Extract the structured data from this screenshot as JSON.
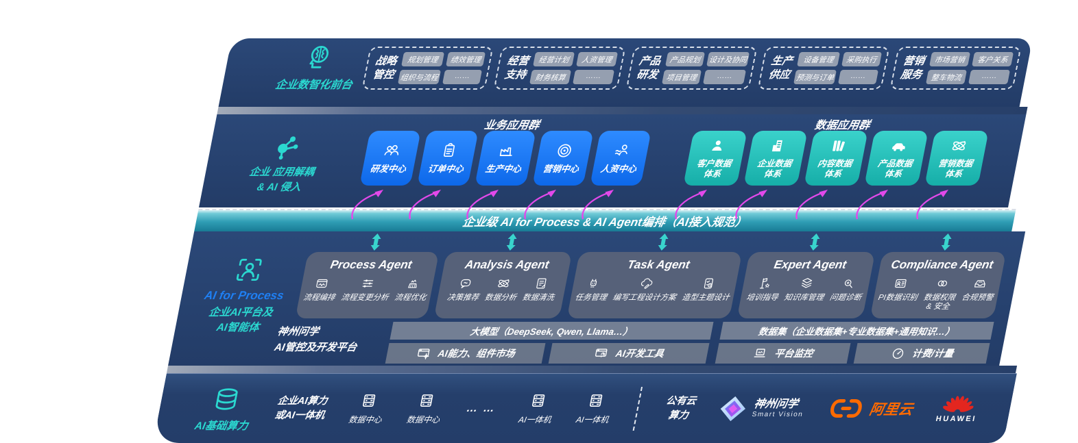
{
  "colors": {
    "teal_accent": "#2bd8d0",
    "blue_accent": "#1f7ff2",
    "magenta_arrow": "#e249ea",
    "navy_background": "#25406d",
    "blue_card": "#1678f2",
    "teal_card": "#22bdb6",
    "band_teal": "#2f9db4",
    "aliyun_orange": "#ff6a00",
    "huawei_red": "#e3261f"
  },
  "front_office": {
    "label": "企业数智化前台",
    "icon": "brain-head-icon",
    "groups": [
      {
        "title": [
          "战略",
          "管控"
        ],
        "items": [
          "规划管理",
          "绩效管理",
          "组织与流程",
          "……"
        ]
      },
      {
        "title": [
          "经营",
          "支持"
        ],
        "items": [
          "经营计划",
          "人资管理",
          "财务核算",
          "……"
        ]
      },
      {
        "title": [
          "产品",
          "研发"
        ],
        "items": [
          "产品规划",
          "设计及协同",
          "项目管理",
          "……"
        ]
      },
      {
        "title": [
          "生产",
          "供应"
        ],
        "items": [
          "设备管理",
          "采购执行",
          "预测与订单",
          "……"
        ]
      },
      {
        "title": [
          "营销",
          "服务"
        ],
        "items": [
          "市场营销",
          "客户关系",
          "整车物流",
          "……"
        ]
      }
    ]
  },
  "app_layer": {
    "label_lines": [
      "企业 应用解耦",
      "& AI 侵入"
    ],
    "icon": "molecule-icon",
    "business_group_title": "业务应用群",
    "data_group_title": "数据应用群",
    "business_apps": [
      {
        "label": "研发中心",
        "icon": "people-icon"
      },
      {
        "label": "订单中心",
        "icon": "clipboard-icon"
      },
      {
        "label": "生产中心",
        "icon": "factory-icon"
      },
      {
        "label": "营销中心",
        "icon": "target-icon"
      },
      {
        "label": "人资中心",
        "icon": "person-arrows-icon"
      }
    ],
    "data_apps": [
      {
        "label": [
          "客户数据",
          "体系"
        ],
        "icon": "person-icon"
      },
      {
        "label": [
          "企业数据",
          "体系"
        ],
        "icon": "building-icon"
      },
      {
        "label": [
          "内容数据",
          "体系"
        ],
        "icon": "books-icon"
      },
      {
        "label": [
          "产品数据",
          "体系"
        ],
        "icon": "car-icon"
      },
      {
        "label": [
          "营销数据",
          "体系"
        ],
        "icon": "atom-icon"
      }
    ]
  },
  "orchestration_band": {
    "label": "企业级 AI for Process & AI Agent编排（AI接入规范）"
  },
  "ai_platform": {
    "label_line1": "AI for Process",
    "label_line2": "企业AI平台及",
    "label_line3": "AI智能体",
    "icon": "scan-person-icon",
    "agents": [
      {
        "title": "Process Agent",
        "capabilities": [
          {
            "label": "流程编排",
            "icon": "flow-monitor-icon"
          },
          {
            "label": "流程变更分析",
            "icon": "sliders-icon"
          },
          {
            "label": "流程优化",
            "icon": "optimize-icon"
          }
        ]
      },
      {
        "title": "Analysis Agent",
        "capabilities": [
          {
            "label": "决策推荐",
            "icon": "chat-face-icon"
          },
          {
            "label": "数据分析",
            "icon": "atom-icon"
          },
          {
            "label": "数据清洗",
            "icon": "doc-clean-icon"
          }
        ]
      },
      {
        "title": "Task Agent",
        "capabilities": [
          {
            "label": "任务管理",
            "icon": "robot-icon"
          },
          {
            "label": "编写工程设计方案",
            "icon": "cloud-edit-icon"
          },
          {
            "label": "造型主题设计",
            "icon": "checklist-clock-icon"
          }
        ]
      },
      {
        "title": "Expert Agent",
        "capabilities": [
          {
            "label": "培训指导",
            "icon": "training-icon"
          },
          {
            "label": "知识库管理",
            "icon": "layers-icon"
          },
          {
            "label": "问题诊断",
            "icon": "diagnose-icon"
          }
        ]
      },
      {
        "title": "Compliance Agent",
        "capabilities": [
          {
            "label": "PI数据识别",
            "icon": "id-card-icon"
          },
          {
            "label": "数据权限 & 安全",
            "icon": "keys-icon",
            "two_line": true
          },
          {
            "label": "合规预警",
            "icon": "alert-mail-icon"
          }
        ]
      }
    ],
    "platform": {
      "label_line1": "神州问学",
      "label_line2": "AI管控及开发平台",
      "model_bar": "大模型（DeepSeek, Qwen, Llama…）",
      "capability_bar": "AI能力、组件市场",
      "capability_icon": "window-gear-icon",
      "devtools_bar": "AI开发工具",
      "devtools_icon": "window-tools-icon",
      "dataset_bar": "数据集（企业数据集+专业数据集+通用知识…）",
      "monitor_bar": "平台监控",
      "monitor_icon": "laptop-monitor-icon",
      "billing_bar": "计费/计量",
      "billing_icon": "gauge-icon"
    }
  },
  "compute_layer": {
    "label": "AI基础算力",
    "icon": "database-icon",
    "enterprise_label_lines": [
      "企业AI算力",
      "或AI一体机"
    ],
    "nodes": [
      {
        "label": "数据中心",
        "icon": "server-icon"
      },
      {
        "label": "数据中心",
        "icon": "server-icon"
      },
      {
        "type": "dots",
        "label": "… …"
      },
      {
        "label": "AI一体机",
        "icon": "server-icon"
      },
      {
        "label": "AI一体机",
        "icon": "server-icon"
      }
    ],
    "public_cloud_lines": [
      "公有云",
      "算力"
    ],
    "vendors": [
      {
        "name": "神州问学",
        "subtitle": "Smart Vision",
        "icon": "smartvision-logo-icon"
      },
      {
        "name": "阿里云",
        "icon": "aliyun-logo-icon"
      },
      {
        "name": "HUAWEI",
        "icon": "huawei-logo-icon"
      }
    ]
  }
}
